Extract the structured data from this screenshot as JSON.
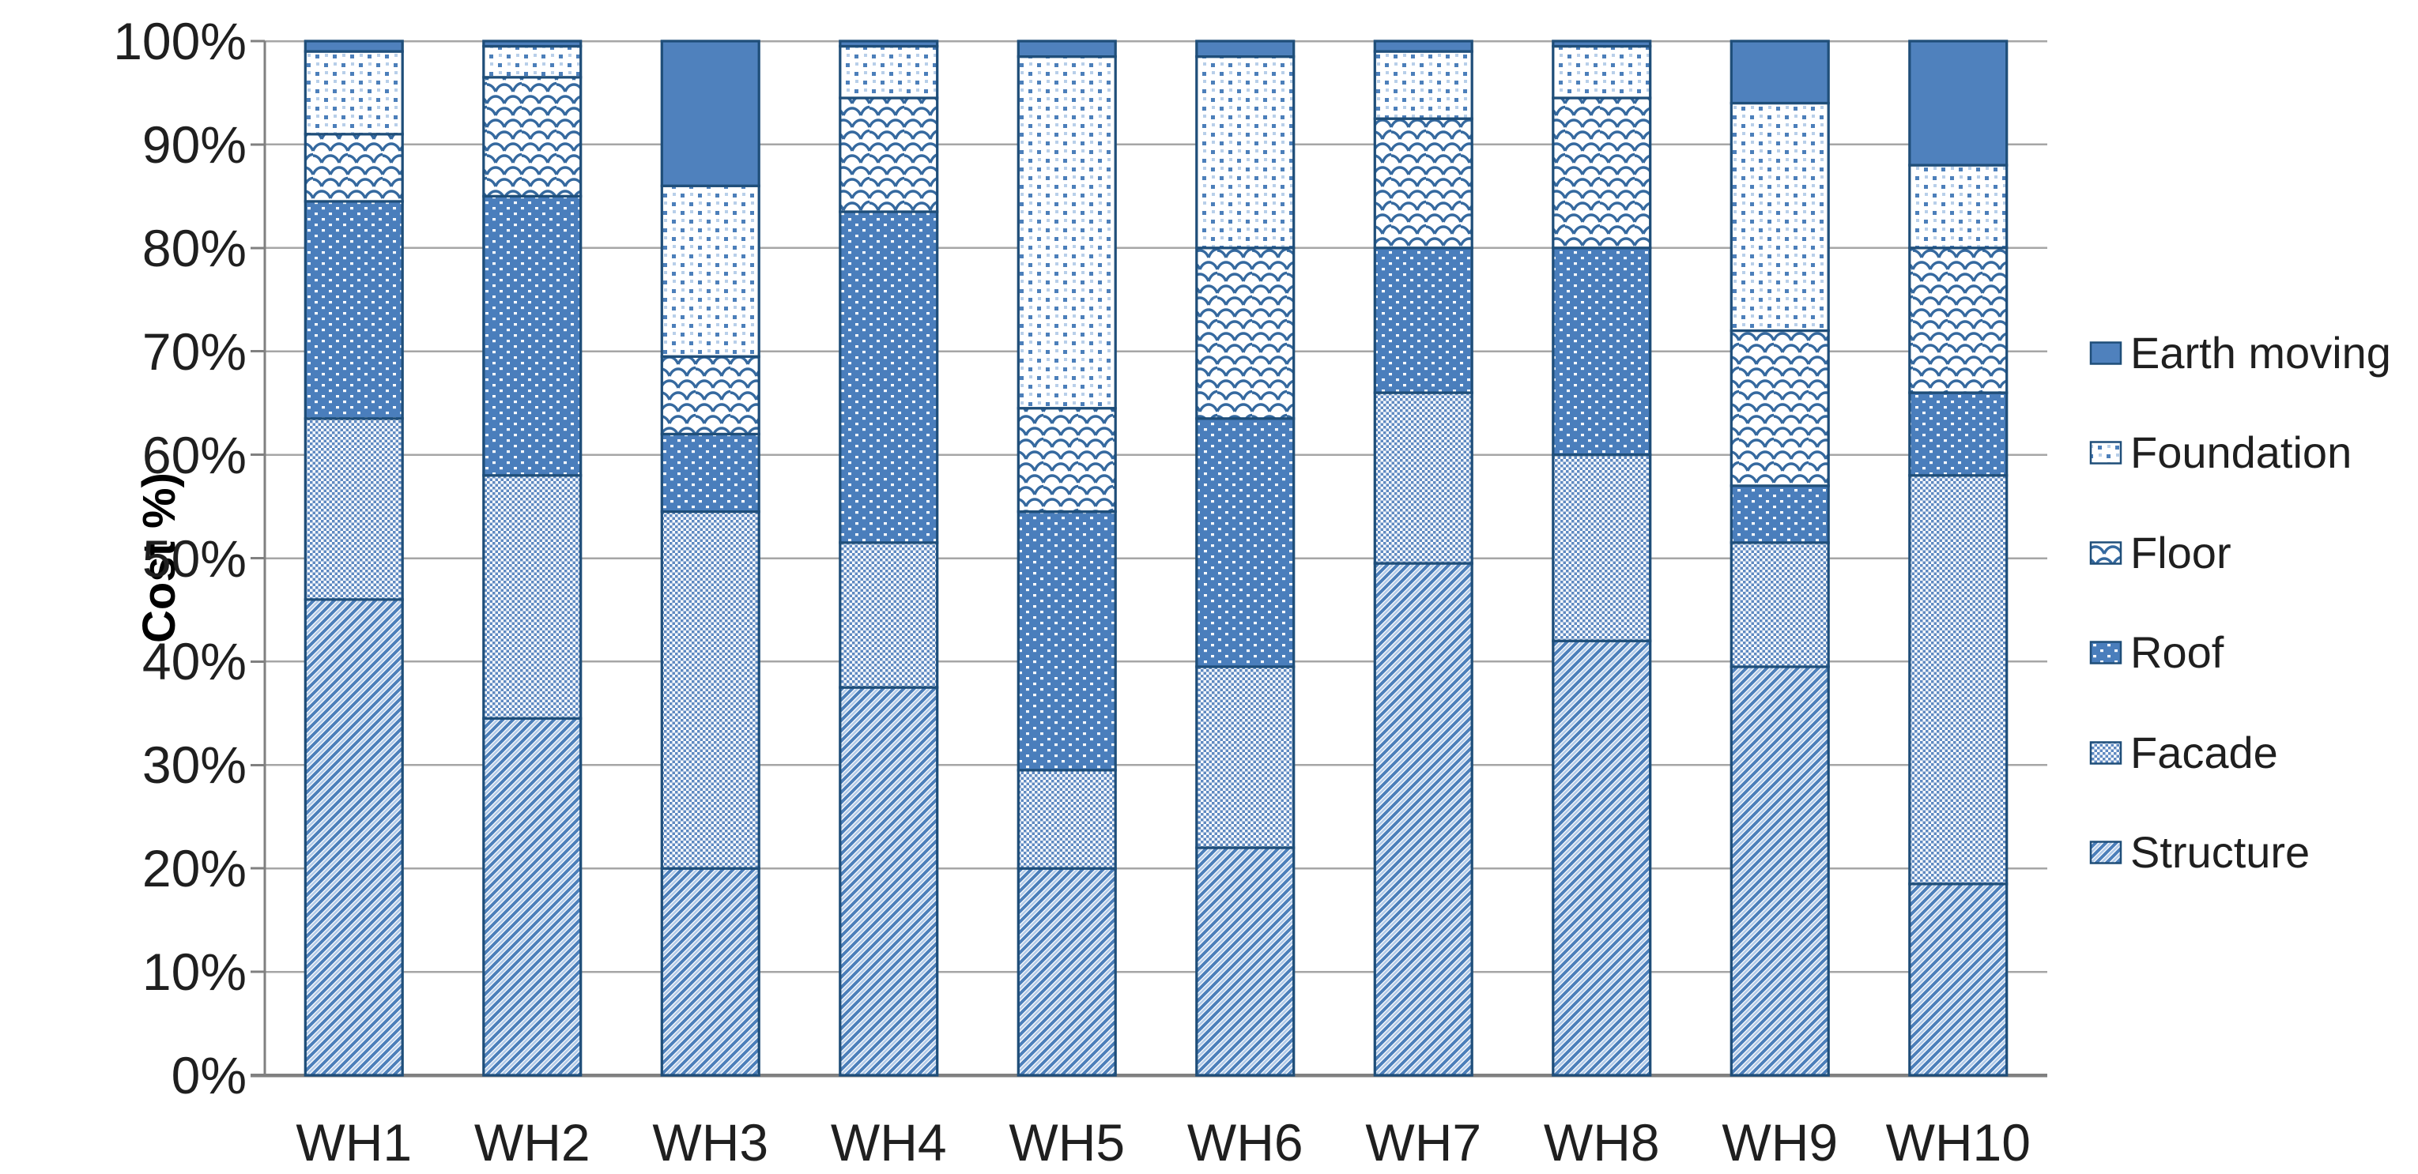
{
  "chart_data": {
    "type": "bar",
    "stacked": true,
    "percent_axis": true,
    "ylabel": "Cost %)",
    "ylim": [
      0,
      100
    ],
    "grid": "horizontal",
    "legend_position": "right",
    "yticks": [
      "0%",
      "10%",
      "20%",
      "30%",
      "40%",
      "50%",
      "60%",
      "70%",
      "80%",
      "90%",
      "100%"
    ],
    "categories": [
      "WH1",
      "WH2",
      "WH3",
      "WH4",
      "WH5",
      "WH6",
      "WH7",
      "WH8",
      "WH9",
      "WH10"
    ],
    "series": [
      {
        "name": "Earth moving",
        "pattern": "solid",
        "values": [
          1,
          0.5,
          14,
          0.5,
          1.5,
          1.5,
          1,
          0.5,
          6,
          12
        ]
      },
      {
        "name": "Foundation",
        "pattern": "dots-sparse",
        "values": [
          8,
          3,
          16.5,
          5,
          34,
          18.5,
          6.5,
          5,
          22,
          8
        ]
      },
      {
        "name": "Floor",
        "pattern": "scale",
        "values": [
          6.5,
          11.5,
          7.5,
          11,
          10,
          16.5,
          12.5,
          14.5,
          15,
          14
        ]
      },
      {
        "name": "Roof",
        "pattern": "dots-dense",
        "values": [
          21,
          27,
          7.5,
          32,
          25,
          24,
          14,
          20,
          5.5,
          8
        ]
      },
      {
        "name": "Facade",
        "pattern": "checker",
        "values": [
          17.5,
          23.5,
          34.5,
          14,
          9.5,
          17.5,
          16.5,
          18,
          12,
          39.5
        ]
      },
      {
        "name": "Structure",
        "pattern": "diagonal",
        "values": [
          46,
          34.5,
          20,
          37.5,
          20,
          22,
          49.5,
          42,
          39.5,
          18.5
        ]
      }
    ],
    "colors": {
      "bar_fill": "#4f81bd",
      "bar_border": "#1f4e79",
      "gridline": "#a6a6a6",
      "axis": "#808080",
      "text": "#1f1f1f"
    }
  }
}
